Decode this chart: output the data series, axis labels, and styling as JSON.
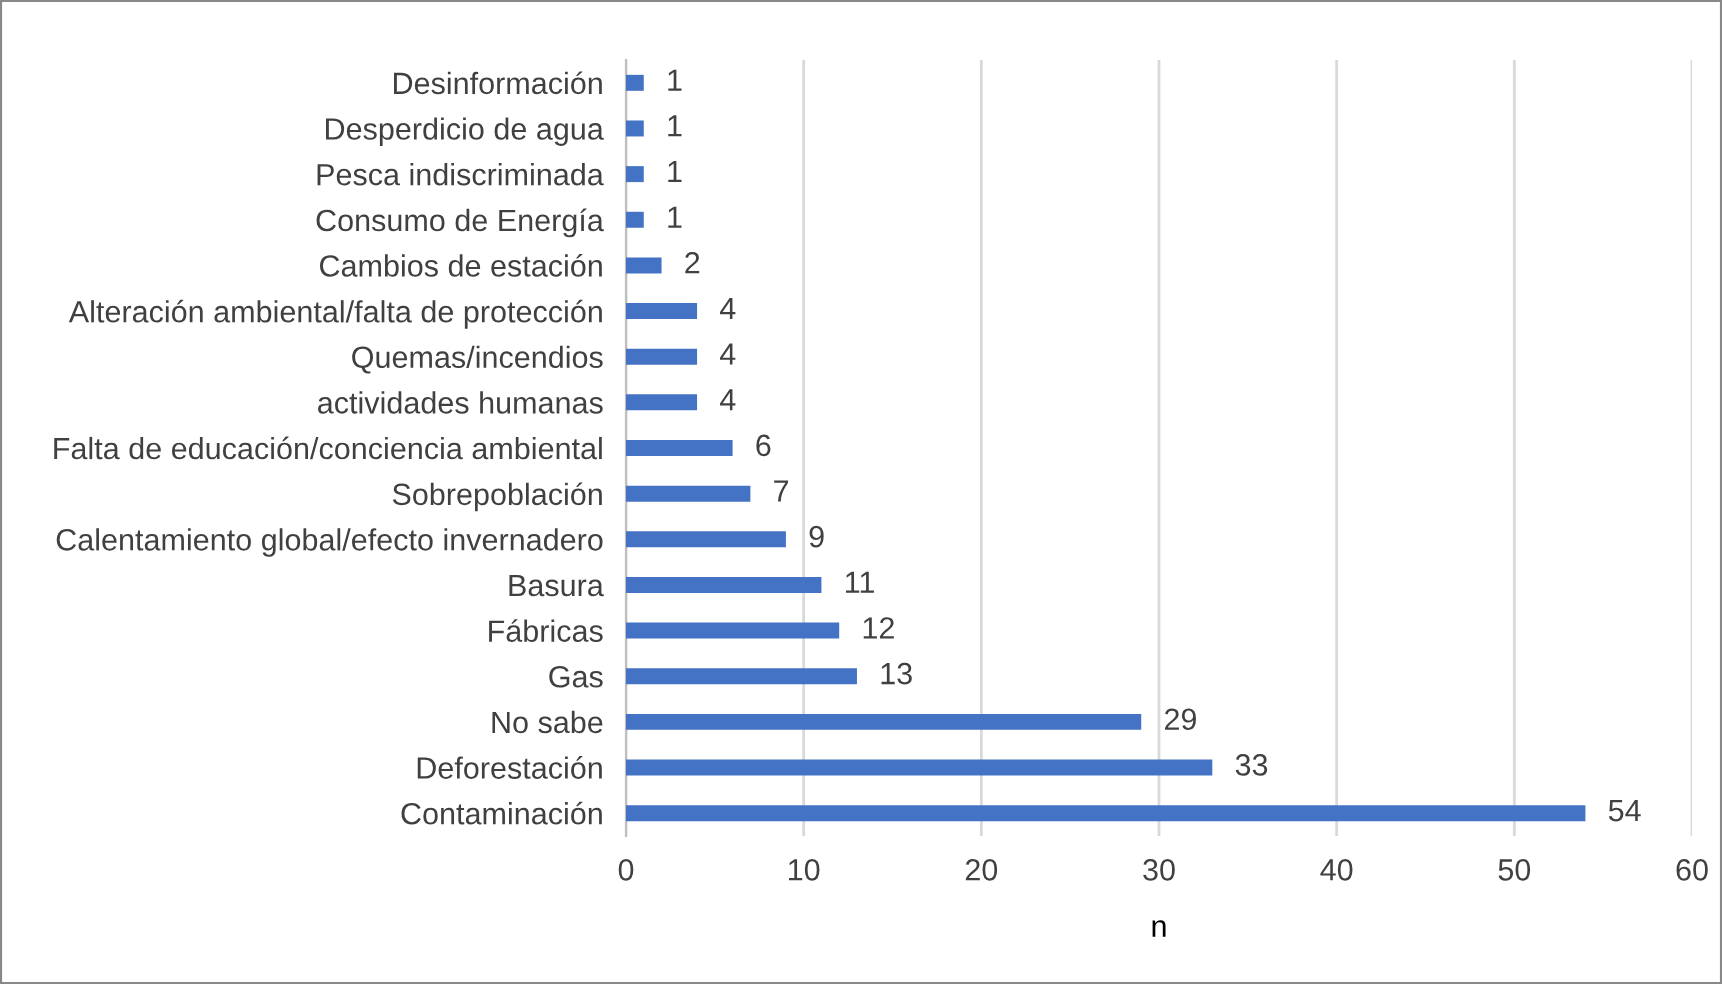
{
  "chart_data": {
    "type": "bar",
    "orientation": "horizontal",
    "xlabel": "n",
    "categories": [
      "Desinformación",
      "Desperdicio de agua",
      "Pesca indiscriminada",
      "Consumo de Energía",
      "Cambios de estación",
      "Alteración ambiental/falta de protección",
      "Quemas/incendios",
      "actividades humanas",
      "Falta de educación/conciencia ambiental",
      "Sobrepoblación",
      "Calentamiento global/efecto invernadero",
      "Basura",
      "Fábricas",
      "Gas",
      "No sabe",
      "Deforestación",
      "Contaminación"
    ],
    "values": [
      1,
      1,
      1,
      1,
      2,
      4,
      4,
      4,
      6,
      7,
      9,
      11,
      12,
      13,
      29,
      33,
      54
    ],
    "color": "#4472c4",
    "xlim": [
      0,
      60
    ],
    "xticks": [
      0,
      10,
      20,
      30,
      40,
      50,
      60
    ],
    "grid": "x",
    "data_labels": true
  }
}
